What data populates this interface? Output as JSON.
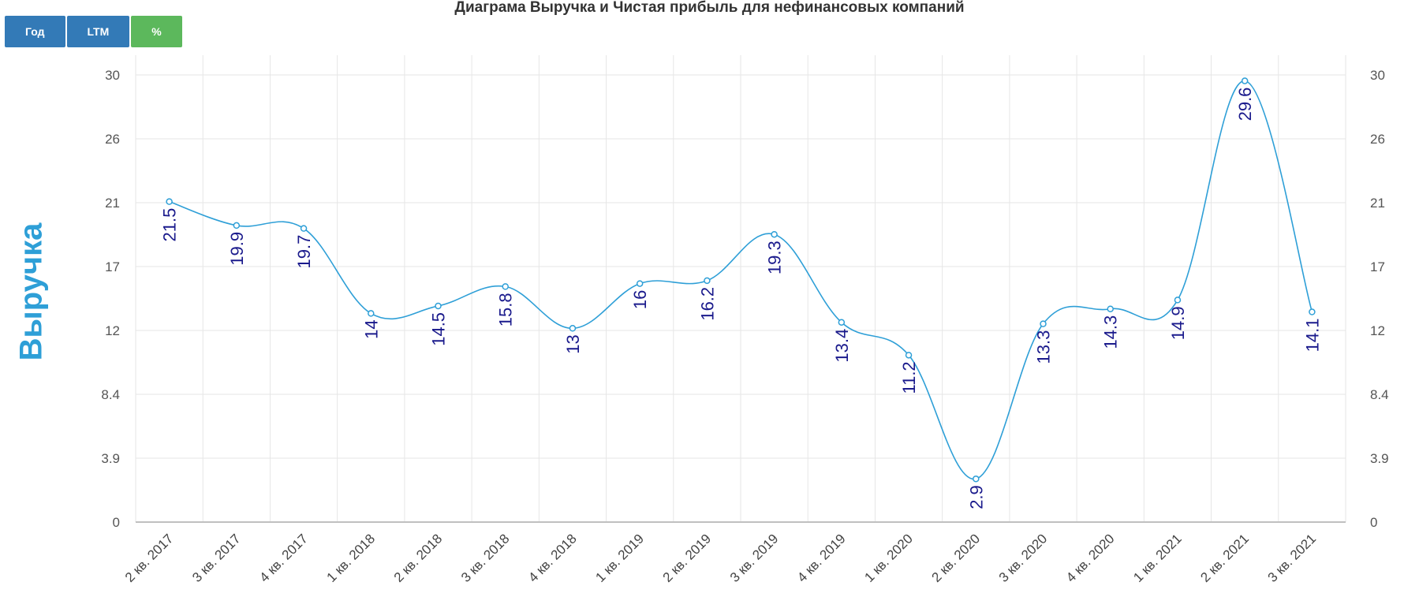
{
  "toolbar": {
    "buttons": [
      {
        "label": "Год"
      },
      {
        "label": "LTM"
      },
      {
        "label": "%"
      }
    ]
  },
  "colors": {
    "line": "#2e9fd7",
    "button_blue": "#337ab7",
    "button_green": "#5cb85c",
    "data_label": "#1a1a8c"
  },
  "chart_data": {
    "type": "line",
    "title": "Диаграма Выручка и Чистая прибыль для нефинансовых компаний",
    "ylabel": "Выручка",
    "xlabel": "",
    "categories": [
      "2 кв. 2017",
      "3 кв. 2017",
      "4 кв. 2017",
      "1 кв. 2018",
      "2 кв. 2018",
      "3 кв. 2018",
      "4 кв. 2018",
      "1 кв. 2019",
      "2 кв. 2019",
      "3 кв. 2019",
      "4 кв. 2019",
      "1 кв. 2020",
      "2 кв. 2020",
      "3 кв. 2020",
      "4 кв. 2020",
      "1 кв. 2021",
      "2 кв. 2021",
      "3 кв. 2021"
    ],
    "series": [
      {
        "values": [
          21.5,
          19.9,
          19.7,
          14,
          14.5,
          15.8,
          13,
          16,
          16.2,
          19.3,
          13.4,
          11.2,
          2.9,
          13.3,
          14.3,
          14.9,
          29.6,
          14.1
        ]
      }
    ],
    "y_ticks": [
      "0",
      "3.9",
      "8.4",
      "12",
      "17",
      "21",
      "26",
      "30"
    ],
    "ylim": [
      0,
      30
    ],
    "grid": true,
    "right_axis": true
  }
}
